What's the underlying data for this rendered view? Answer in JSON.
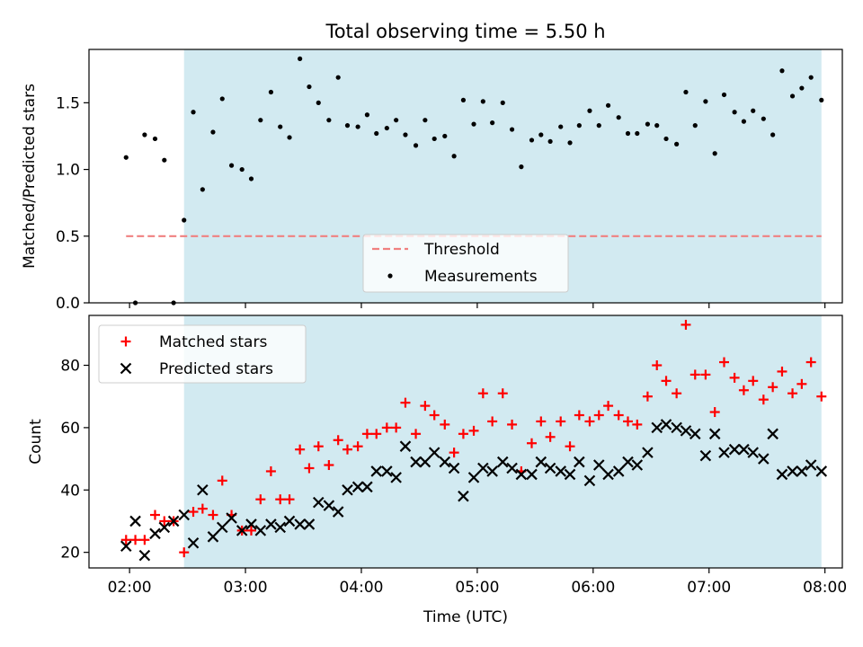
{
  "title": "Total observing time = 5.50 h",
  "colors": {
    "span_fill": "#add8e6",
    "threshold": "#f08080",
    "matched": "#ff0000",
    "predicted": "#000000",
    "measurements": "#000000"
  },
  "chart_data": [
    {
      "type": "scatter",
      "panel": "top",
      "ylabel": "Matched/Predicted stars",
      "ylim": [
        0,
        1.9
      ],
      "yticks": [
        0.0,
        0.5,
        1.0,
        1.5
      ],
      "ytick_labels": [
        "0.0",
        "0.5",
        "1.0",
        "1.5"
      ],
      "xlim_hours": [
        1.65,
        8.15
      ],
      "observing_window_hours": [
        2.47,
        7.97
      ],
      "threshold": 0.5,
      "legend_placement": "lower center",
      "series": [
        {
          "name": "Measurements",
          "x": [
            1.97,
            2.05,
            2.13,
            2.22,
            2.3,
            2.38,
            2.47,
            2.55,
            2.63,
            2.72,
            2.8,
            2.88,
            2.97,
            3.05,
            3.13,
            3.22,
            3.3,
            3.38,
            3.47,
            3.55,
            3.63,
            3.72,
            3.8,
            3.88,
            3.97,
            4.05,
            4.13,
            4.22,
            4.3,
            4.38,
            4.47,
            4.55,
            4.63,
            4.72,
            4.8,
            4.88,
            4.97,
            5.05,
            5.13,
            5.22,
            5.3,
            5.38,
            5.47,
            5.55,
            5.63,
            5.72,
            5.8,
            5.88,
            5.97,
            6.05,
            6.13,
            6.22,
            6.3,
            6.38,
            6.47,
            6.55,
            6.63,
            6.72,
            6.8,
            6.88,
            6.97,
            7.05,
            7.13,
            7.22,
            7.3,
            7.38,
            7.47,
            7.55,
            7.63,
            7.72,
            7.8,
            7.88,
            7.97
          ],
          "y": [
            1.09,
            0.0,
            1.26,
            1.23,
            1.07,
            0.0,
            0.62,
            1.43,
            0.85,
            1.28,
            1.53,
            1.03,
            1.0,
            0.93,
            1.37,
            1.58,
            1.32,
            1.24,
            1.83,
            1.62,
            1.5,
            1.37,
            1.69,
            1.33,
            1.32,
            1.41,
            1.27,
            1.31,
            1.37,
            1.26,
            1.18,
            1.37,
            1.23,
            1.25,
            1.1,
            1.52,
            1.34,
            1.51,
            1.35,
            1.5,
            1.3,
            1.02,
            1.22,
            1.26,
            1.21,
            1.32,
            1.2,
            1.33,
            1.44,
            1.33,
            1.48,
            1.39,
            1.27,
            1.27,
            1.34,
            1.33,
            1.23,
            1.19,
            1.58,
            1.33,
            1.51,
            1.12,
            1.56,
            1.43,
            1.36,
            1.44,
            1.38,
            1.26,
            1.74,
            1.55,
            1.61,
            1.69,
            1.52
          ]
        },
        {
          "name": "Threshold",
          "value": 0.5
        }
      ]
    },
    {
      "type": "scatter",
      "panel": "bottom",
      "xlabel": "Time (UTC)",
      "ylabel": "Count",
      "ylim": [
        15,
        96
      ],
      "yticks": [
        20,
        40,
        60,
        80
      ],
      "ytick_labels": [
        "20",
        "40",
        "60",
        "80"
      ],
      "xlim_hours": [
        1.65,
        8.15
      ],
      "xticks_hours": [
        2,
        3,
        4,
        5,
        6,
        7,
        8
      ],
      "xtick_labels": [
        "02:00",
        "03:00",
        "04:00",
        "05:00",
        "06:00",
        "07:00",
        "08:00"
      ],
      "observing_window_hours": [
        2.47,
        7.97
      ],
      "legend_placement": "upper left",
      "series": [
        {
          "name": "Matched stars",
          "x": [
            1.97,
            2.05,
            2.13,
            2.22,
            2.3,
            2.38,
            2.47,
            2.55,
            2.63,
            2.72,
            2.8,
            2.88,
            2.97,
            3.05,
            3.13,
            3.22,
            3.3,
            3.38,
            3.47,
            3.55,
            3.63,
            3.72,
            3.8,
            3.88,
            3.97,
            4.05,
            4.13,
            4.22,
            4.3,
            4.38,
            4.47,
            4.55,
            4.63,
            4.72,
            4.8,
            4.88,
            4.97,
            5.05,
            5.13,
            5.22,
            5.3,
            5.38,
            5.47,
            5.55,
            5.63,
            5.72,
            5.8,
            5.88,
            5.97,
            6.05,
            6.13,
            6.22,
            6.3,
            6.38,
            6.47,
            6.55,
            6.63,
            6.72,
            6.8,
            6.88,
            6.97,
            7.05,
            7.13,
            7.22,
            7.3,
            7.38,
            7.47,
            7.55,
            7.63,
            7.72,
            7.8,
            7.88,
            7.97
          ],
          "y": [
            24,
            24,
            24,
            32,
            30,
            30,
            20,
            33,
            34,
            32,
            43,
            32,
            27,
            27,
            37,
            46,
            37,
            37,
            53,
            47,
            54,
            48,
            56,
            53,
            54,
            58,
            58,
            60,
            60,
            68,
            58,
            67,
            64,
            61,
            52,
            58,
            59,
            71,
            62,
            71,
            61,
            46,
            55,
            62,
            57,
            62,
            54,
            64,
            62,
            64,
            67,
            64,
            62,
            61,
            70,
            80,
            75,
            71,
            93,
            77,
            77,
            65,
            81,
            76,
            72,
            75,
            69,
            73,
            78,
            71,
            74,
            81,
            70
          ]
        },
        {
          "name": "Predicted stars",
          "x": [
            1.97,
            2.05,
            2.13,
            2.22,
            2.3,
            2.38,
            2.47,
            2.55,
            2.63,
            2.72,
            2.8,
            2.88,
            2.97,
            3.05,
            3.13,
            3.22,
            3.3,
            3.38,
            3.47,
            3.55,
            3.63,
            3.72,
            3.8,
            3.88,
            3.97,
            4.05,
            4.13,
            4.22,
            4.3,
            4.38,
            4.47,
            4.55,
            4.63,
            4.72,
            4.8,
            4.88,
            4.97,
            5.05,
            5.13,
            5.22,
            5.3,
            5.38,
            5.47,
            5.55,
            5.63,
            5.72,
            5.8,
            5.88,
            5.97,
            6.05,
            6.13,
            6.22,
            6.3,
            6.38,
            6.47,
            6.55,
            6.63,
            6.72,
            6.8,
            6.88,
            6.97,
            7.05,
            7.13,
            7.22,
            7.3,
            7.38,
            7.47,
            7.55,
            7.63,
            7.72,
            7.8,
            7.88,
            7.97
          ],
          "y": [
            22,
            30,
            19,
            26,
            28,
            30,
            32,
            23,
            40,
            25,
            28,
            31,
            27,
            29,
            27,
            29,
            28,
            30,
            29,
            29,
            36,
            35,
            33,
            40,
            41,
            41,
            46,
            46,
            44,
            54,
            49,
            49,
            52,
            49,
            47,
            38,
            44,
            47,
            46,
            49,
            47,
            45,
            45,
            49,
            47,
            46,
            45,
            49,
            43,
            48,
            45,
            46,
            49,
            48,
            52,
            60,
            61,
            60,
            59,
            58,
            51,
            58,
            52,
            53,
            53,
            52,
            50,
            58,
            45,
            46,
            46,
            48,
            46
          ]
        }
      ]
    }
  ]
}
